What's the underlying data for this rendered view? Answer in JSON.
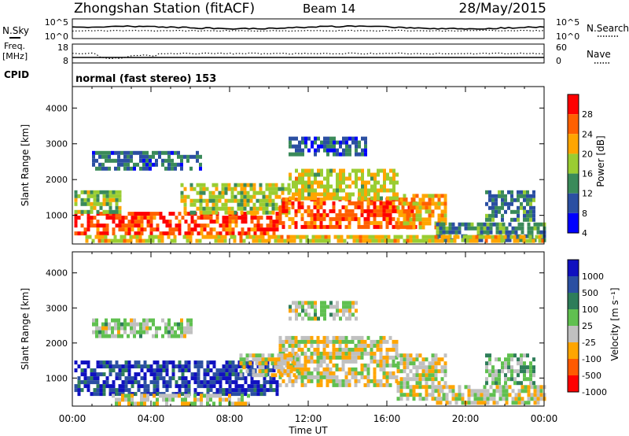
{
  "header": {
    "station": "Zhongshan Station (fitACF)",
    "beam": "Beam 14",
    "date": "28/May/2015"
  },
  "noise_panel": {
    "left_label": "N.Sky",
    "right_label": "N.Search",
    "left_ticks": [
      "10^5",
      "10^0"
    ],
    "right_ticks": [
      "10^5",
      "10^0"
    ]
  },
  "freq_panel": {
    "left_label_1": "Freq.",
    "left_label_2": "[MHz]",
    "right_label": "Nave",
    "left_ticks": [
      "18",
      "8"
    ],
    "right_ticks": [
      "60",
      "0"
    ]
  },
  "cpid_panel": {
    "label": "CPID",
    "mode": "normal (fast stereo) 153"
  },
  "power_panel": {
    "y_label": "Slant Range [km]",
    "colorbar_label": "Power [dB]",
    "colorbar_ticks": [
      "28",
      "24",
      "20",
      "16",
      "12",
      "8",
      "4"
    ]
  },
  "velocity_panel": {
    "y_label": "Slant Range [km]",
    "colorbar_label": "Velocity [m s⁻¹]",
    "colorbar_ticks": [
      "1000",
      "500",
      "100",
      "25",
      "-25",
      "-100",
      "-500",
      "-1000"
    ]
  },
  "x_axis": {
    "label": "Time UT",
    "ticks": [
      "00:00",
      "04:00",
      "08:00",
      "12:00",
      "16:00",
      "20:00",
      "00:00"
    ]
  },
  "colors": {
    "power_scale": [
      "#0000ff",
      "#2b4fa2",
      "#3a8a5a",
      "#9acd32",
      "#ffa500",
      "#ff6000",
      "#ff0000"
    ],
    "velocity_scale": [
      "#ff0000",
      "#ff5a00",
      "#ffa500",
      "#c0c0c0",
      "#60c050",
      "#2e7d5a",
      "#2b4fa2",
      "#1010c0"
    ]
  },
  "chart_data": [
    {
      "type": "heatmap",
      "name": "power",
      "x_range": [
        0,
        24
      ],
      "ylim": [
        200,
        4600
      ],
      "y_ticks": [
        1000,
        2000,
        3000,
        4000
      ],
      "x_ticks_hours": [
        0,
        4,
        8,
        12,
        16,
        20,
        24
      ],
      "value_range": [
        0,
        30
      ],
      "regions": [
        {
          "t": [
            0.1,
            10.5
          ],
          "r": [
            500,
            1100
          ],
          "v": 25
        },
        {
          "t": [
            0.1,
            2.5
          ],
          "r": [
            1100,
            1700
          ],
          "v": 14
        },
        {
          "t": [
            1.0,
            6.5
          ],
          "r": [
            2300,
            2800
          ],
          "v": 8
        },
        {
          "t": [
            5.5,
            11.0
          ],
          "r": [
            1100,
            1900
          ],
          "v": 15
        },
        {
          "t": [
            10.5,
            17.5
          ],
          "r": [
            700,
            1500
          ],
          "v": 24
        },
        {
          "t": [
            11.0,
            16.5
          ],
          "r": [
            1500,
            2300
          ],
          "v": 17
        },
        {
          "t": [
            11.0,
            15.0
          ],
          "r": [
            2700,
            3200
          ],
          "v": 7
        },
        {
          "t": [
            16.5,
            19.0
          ],
          "r": [
            700,
            1600
          ],
          "v": 19
        },
        {
          "t": [
            18.5,
            24.0
          ],
          "r": [
            250,
            800
          ],
          "v": 10
        },
        {
          "t": [
            21.0,
            23.5
          ],
          "r": [
            900,
            1700
          ],
          "v": 9
        },
        {
          "t": [
            0.5,
            24.0
          ],
          "r": [
            250,
            450
          ],
          "v": 18
        }
      ]
    },
    {
      "type": "heatmap",
      "name": "velocity",
      "x_range": [
        0,
        24
      ],
      "ylim": [
        200,
        4600
      ],
      "y_ticks": [
        1000,
        2000,
        3000,
        4000
      ],
      "x_ticks_hours": [
        0,
        4,
        8,
        12,
        16,
        20,
        24
      ],
      "value_range": [
        -1000,
        1000
      ],
      "regions": [
        {
          "t": [
            0.1,
            10.5
          ],
          "r": [
            550,
            1500
          ],
          "v": 700
        },
        {
          "t": [
            2.0,
            9.0
          ],
          "r": [
            300,
            550
          ],
          "v": -120
        },
        {
          "t": [
            1.0,
            6.0
          ],
          "r": [
            2200,
            2700
          ],
          "v": 0
        },
        {
          "t": [
            10.5,
            16.5
          ],
          "r": [
            800,
            2200
          ],
          "v": -150
        },
        {
          "t": [
            11.0,
            14.5
          ],
          "r": [
            2700,
            3200
          ],
          "v": 0
        },
        {
          "t": [
            16.5,
            19.0
          ],
          "r": [
            400,
            1700
          ],
          "v": -120
        },
        {
          "t": [
            18.5,
            24.0
          ],
          "r": [
            250,
            800
          ],
          "v": -150
        },
        {
          "t": [
            21.0,
            23.5
          ],
          "r": [
            900,
            1700
          ],
          "v": 80
        },
        {
          "t": [
            8.5,
            11.5
          ],
          "r": [
            1100,
            1700
          ],
          "v": -120
        }
      ]
    }
  ]
}
